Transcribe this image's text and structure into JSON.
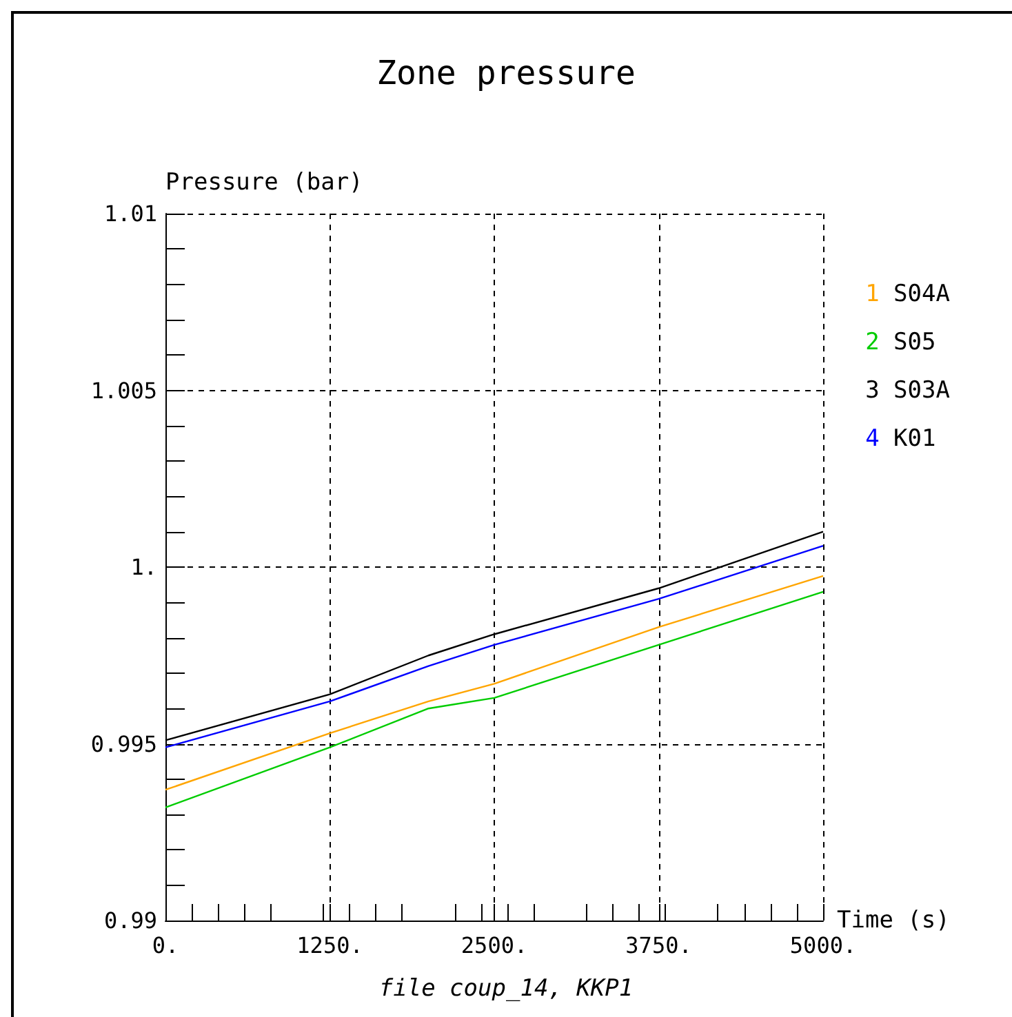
{
  "chart_data": {
    "type": "line",
    "title": "Zone pressure",
    "xlabel": "Time (s)",
    "ylabel": "Pressure (bar)",
    "annotations": [
      "file coup_14, KKP1"
    ],
    "x": [
      0,
      1250,
      2000,
      2500,
      3750,
      5000
    ],
    "series": [
      {
        "name": "1 S04A",
        "color": "#ffa500",
        "values": [
          0.9937,
          0.9953,
          0.9962,
          0.9967,
          0.9983,
          0.99975
        ]
      },
      {
        "name": "2 S05",
        "color": "#00cc00",
        "values": [
          0.9932,
          0.9949,
          0.996,
          0.9963,
          0.9978,
          0.9993
        ]
      },
      {
        "name": "3 S03A",
        "color": "#000000",
        "values": [
          0.9951,
          0.9964,
          0.9975,
          0.9981,
          0.9994,
          1.001
        ]
      },
      {
        "name": "4 K01",
        "color": "#0000ff",
        "values": [
          0.9949,
          0.9962,
          0.9972,
          0.9978,
          0.9991,
          1.0006
        ]
      }
    ],
    "xlim": [
      0,
      5000
    ],
    "xticks": [
      {
        "value": 0,
        "label": "0."
      },
      {
        "value": 1250,
        "label": "1250."
      },
      {
        "value": 2500,
        "label": "2500."
      },
      {
        "value": 3750,
        "label": "3750."
      },
      {
        "value": 5000,
        "label": "5000."
      }
    ],
    "ylim": [
      0.99,
      1.01
    ],
    "yticks": [
      0.99,
      0.995,
      {
        "value": 1,
        "label": "1."
      },
      1.005,
      1.01
    ],
    "grid": true,
    "legend": "right",
    "marker": "none",
    "line_style": "solid"
  }
}
